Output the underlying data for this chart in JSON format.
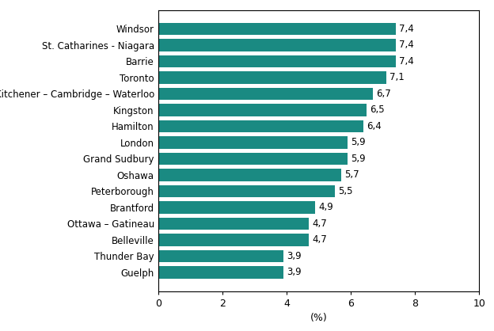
{
  "categories": [
    "Guelph",
    "Thunder Bay",
    "Belleville",
    "Ottawa – Gatineau",
    "Brantford",
    "Peterborough",
    "Oshawa",
    "Grand Sudbury",
    "London",
    "Hamilton",
    "Kingston",
    "Kitchener – Cambridge – Waterloo",
    "Toronto",
    "Barrie",
    "St. Catharines - Niagara",
    "Windsor"
  ],
  "values": [
    3.9,
    3.9,
    4.7,
    4.7,
    4.9,
    5.5,
    5.7,
    5.9,
    5.9,
    6.4,
    6.5,
    6.7,
    7.1,
    7.4,
    7.4,
    7.4
  ],
  "bar_color": "#1a8a82",
  "value_labels": [
    "3,9",
    "3,9",
    "4,7",
    "4,7",
    "4,9",
    "5,5",
    "5,7",
    "5,9",
    "5,9",
    "6,4",
    "6,5",
    "6,7",
    "7,1",
    "7,4",
    "7,4",
    "7,4"
  ],
  "xlabel": "(%)",
  "xlim": [
    0,
    10
  ],
  "xticks": [
    0,
    2,
    4,
    6,
    8,
    10
  ],
  "bar_height": 0.75,
  "label_fontsize": 8.5,
  "tick_fontsize": 9,
  "xlabel_fontsize": 9,
  "value_label_fontsize": 8.5
}
